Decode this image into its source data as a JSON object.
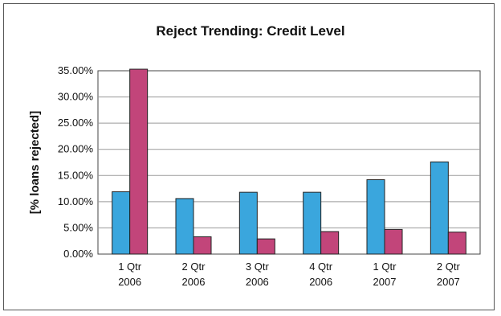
{
  "chart_data": {
    "type": "bar",
    "title": "Reject Trending: Credit Level",
    "ylabel": "[% loans rejected]",
    "xlabel": "",
    "categories": [
      [
        "1 Qtr",
        "2006"
      ],
      [
        "2 Qtr",
        "2006"
      ],
      [
        "3 Qtr",
        "2006"
      ],
      [
        "4 Qtr",
        "2006"
      ],
      [
        "1 Qtr",
        "2007"
      ],
      [
        "2 Qtr",
        "2007"
      ]
    ],
    "y_ticks": [
      "0.00%",
      "5.00%",
      "10.00%",
      "15.00%",
      "20.00%",
      "25.00%",
      "30.00%",
      "35.00%"
    ],
    "ylim": [
      0,
      35
    ],
    "grid": true,
    "legend": "none",
    "series": [
      {
        "values": [
          11.9,
          10.6,
          11.8,
          11.8,
          14.2,
          17.6
        ],
        "color": "#3aa6dd"
      },
      {
        "values": [
          35.3,
          3.3,
          2.9,
          4.3,
          4.7,
          4.2
        ],
        "color": "#c2457a"
      }
    ]
  }
}
